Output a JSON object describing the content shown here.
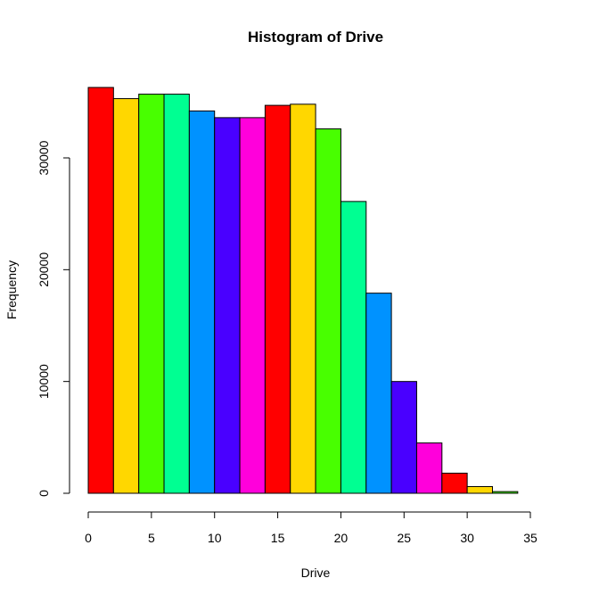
{
  "chart_data": {
    "type": "bar",
    "title": "Histogram of Drive",
    "xlabel": "Drive",
    "ylabel": "Frequency",
    "xlim": [
      0,
      36
    ],
    "ylim": [
      0,
      36500
    ],
    "x_ticks": [
      0,
      5,
      10,
      15,
      20,
      25,
      30,
      35
    ],
    "y_ticks": [
      0,
      10000,
      20000,
      30000
    ],
    "grid": false,
    "bins": [
      {
        "start": 0,
        "end": 2,
        "value": 36300
      },
      {
        "start": 2,
        "end": 4,
        "value": 35300
      },
      {
        "start": 4,
        "end": 6,
        "value": 35700
      },
      {
        "start": 6,
        "end": 8,
        "value": 35700
      },
      {
        "start": 8,
        "end": 10,
        "value": 34200
      },
      {
        "start": 10,
        "end": 12,
        "value": 33600
      },
      {
        "start": 12,
        "end": 14,
        "value": 33600
      },
      {
        "start": 14,
        "end": 16,
        "value": 34700
      },
      {
        "start": 16,
        "end": 18,
        "value": 34800
      },
      {
        "start": 18,
        "end": 20,
        "value": 32600
      },
      {
        "start": 20,
        "end": 22,
        "value": 26100
      },
      {
        "start": 22,
        "end": 24,
        "value": 17900
      },
      {
        "start": 24,
        "end": 26,
        "value": 10000
      },
      {
        "start": 26,
        "end": 28,
        "value": 4500
      },
      {
        "start": 28,
        "end": 30,
        "value": 1800
      },
      {
        "start": 30,
        "end": 32,
        "value": 600
      },
      {
        "start": 32,
        "end": 34,
        "value": 150
      }
    ],
    "colors": [
      "#FF0000",
      "#FFD700",
      "#48FF00",
      "#00FF92",
      "#0092FF",
      "#4900FF",
      "#FF00DB"
    ]
  }
}
